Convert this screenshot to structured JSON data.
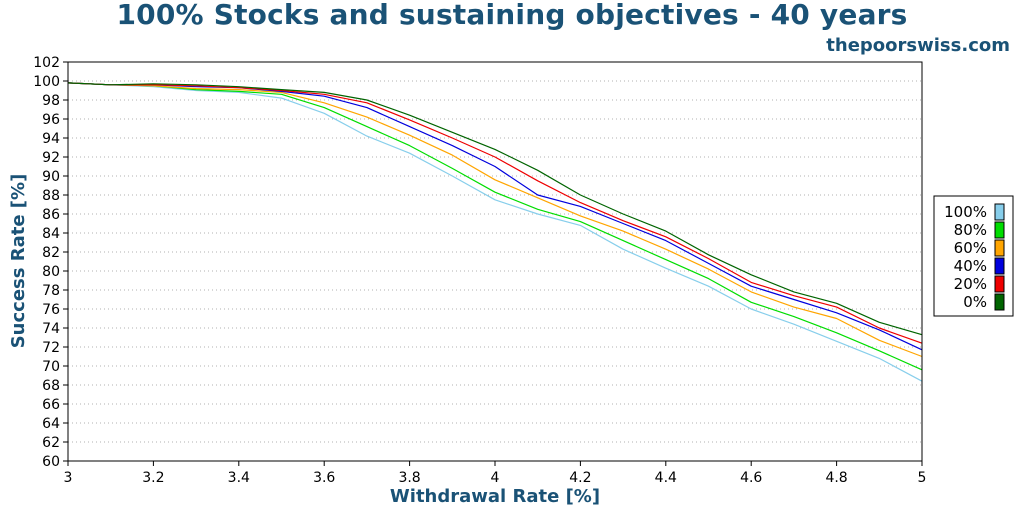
{
  "header": {
    "title": "100% Stocks and sustaining objectives - 40 years",
    "site": "thepoorswiss.com"
  },
  "chart_data": {
    "type": "line",
    "title": "100% Stocks and sustaining objectives - 40 years",
    "xlabel": "Withdrawal Rate [%]",
    "ylabel": "Success Rate [%]",
    "xlim": [
      3,
      5
    ],
    "ylim": [
      60,
      102
    ],
    "xticks": [
      "3",
      "3.2",
      "3.4",
      "3.6",
      "3.8",
      "4",
      "4.2",
      "4.4",
      "4.6",
      "4.8",
      "5"
    ],
    "yticks": [
      "60",
      "62",
      "64",
      "66",
      "68",
      "70",
      "72",
      "74",
      "76",
      "78",
      "80",
      "82",
      "84",
      "86",
      "88",
      "90",
      "92",
      "94",
      "96",
      "98",
      "100",
      "102"
    ],
    "grid": "horizontal dotted",
    "legend_position": "right",
    "x": [
      3.0,
      3.1,
      3.2,
      3.3,
      3.4,
      3.5,
      3.6,
      3.7,
      3.8,
      3.9,
      4.0,
      4.1,
      4.2,
      4.3,
      4.4,
      4.5,
      4.6,
      4.7,
      4.8,
      4.9,
      5.0
    ],
    "series": [
      {
        "name": "100%",
        "color": "#87ceeb",
        "values": [
          99.8,
          99.6,
          99.4,
          99.0,
          98.8,
          98.2,
          96.6,
          94.2,
          92.4,
          90.0,
          87.5,
          86.0,
          84.8,
          82.3,
          80.3,
          78.4,
          76.0,
          74.4,
          72.6,
          70.8,
          68.4
        ]
      },
      {
        "name": "80%",
        "color": "#00dd00",
        "values": [
          99.8,
          99.6,
          99.5,
          99.1,
          98.9,
          98.6,
          97.2,
          95.2,
          93.2,
          90.8,
          88.3,
          86.5,
          85.2,
          83.2,
          81.2,
          79.2,
          76.7,
          75.2,
          73.5,
          71.6,
          69.6
        ]
      },
      {
        "name": "60%",
        "color": "#ffa500",
        "values": [
          99.8,
          99.6,
          99.5,
          99.2,
          99.1,
          98.8,
          97.7,
          96.2,
          94.3,
          92.2,
          89.6,
          87.7,
          85.8,
          84.2,
          82.3,
          80.2,
          77.8,
          76.2,
          75.0,
          72.7,
          71.0
        ]
      },
      {
        "name": "40%",
        "color": "#0000dd",
        "values": [
          99.8,
          99.6,
          99.6,
          99.4,
          99.3,
          98.9,
          98.4,
          97.2,
          95.2,
          93.2,
          91.0,
          88.0,
          86.8,
          85.0,
          83.2,
          80.8,
          78.4,
          77.0,
          75.6,
          73.8,
          71.7
        ]
      },
      {
        "name": "20%",
        "color": "#ee0000",
        "values": [
          99.8,
          99.6,
          99.6,
          99.5,
          99.3,
          99.0,
          98.6,
          97.7,
          95.9,
          94.0,
          92.0,
          89.5,
          87.2,
          85.3,
          83.6,
          81.3,
          78.8,
          77.4,
          76.2,
          74.0,
          72.4
        ]
      },
      {
        "name": "0%",
        "color": "#006400",
        "values": [
          99.8,
          99.6,
          99.7,
          99.6,
          99.4,
          99.1,
          98.8,
          98.0,
          96.4,
          94.6,
          92.8,
          90.6,
          88.0,
          86.0,
          84.2,
          81.7,
          79.6,
          77.8,
          76.6,
          74.6,
          73.3
        ]
      }
    ]
  }
}
